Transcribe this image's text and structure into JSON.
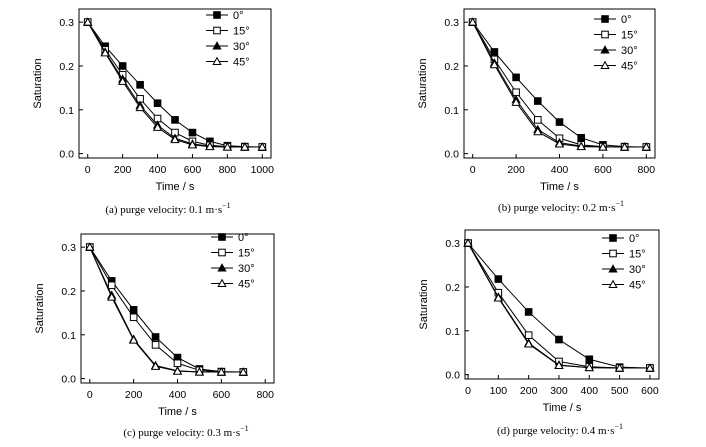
{
  "chart_data": [
    {
      "type": "line",
      "caption": "(a) purge velocity: 0.1 m·s",
      "caption_exp": "−1",
      "xlabel": "Time / s",
      "ylabel": "Saturation",
      "xlim": [
        -50,
        1050
      ],
      "ylim": [
        -0.01,
        0.33
      ],
      "xticks": [
        0,
        200,
        400,
        600,
        800,
        1000
      ],
      "yticks": [
        0.0,
        0.1,
        0.2,
        0.3
      ],
      "ytick_labels": [
        "0.0",
        "0.1",
        "0.2",
        "0.3"
      ],
      "legend": "top-right",
      "series": [
        {
          "name": "0°",
          "marker": "square-filled",
          "x": [
            0,
            100,
            200,
            300,
            400,
            500,
            600,
            700,
            800,
            900,
            1000
          ],
          "y": [
            0.3,
            0.245,
            0.2,
            0.157,
            0.115,
            0.077,
            0.048,
            0.028,
            0.018,
            0.016,
            0.015
          ]
        },
        {
          "name": "15°",
          "marker": "square-open",
          "x": [
            0,
            100,
            200,
            300,
            400,
            500,
            600,
            700,
            800,
            900,
            1000
          ],
          "y": [
            0.3,
            0.237,
            0.18,
            0.125,
            0.08,
            0.048,
            0.028,
            0.019,
            0.016,
            0.015,
            0.015
          ]
        },
        {
          "name": "30°",
          "marker": "triangle-filled",
          "x": [
            0,
            100,
            200,
            300,
            400,
            500,
            600,
            700,
            800,
            900,
            1000
          ],
          "y": [
            0.3,
            0.232,
            0.17,
            0.11,
            0.065,
            0.035,
            0.022,
            0.017,
            0.015,
            0.015,
            0.015
          ]
        },
        {
          "name": "45°",
          "marker": "triangle-open",
          "x": [
            0,
            100,
            200,
            300,
            400,
            500,
            600,
            700,
            800,
            900,
            1000
          ],
          "y": [
            0.3,
            0.23,
            0.165,
            0.105,
            0.06,
            0.032,
            0.02,
            0.016,
            0.015,
            0.015,
            0.015
          ]
        }
      ]
    },
    {
      "type": "line",
      "caption": "(b) purge velocity: 0.2 m·s",
      "caption_exp": "−1",
      "xlabel": "Time / s",
      "ylabel": "Saturation",
      "xlim": [
        -40,
        840
      ],
      "ylim": [
        -0.01,
        0.33
      ],
      "xticks": [
        0,
        200,
        400,
        600,
        800
      ],
      "yticks": [
        0.0,
        0.1,
        0.2,
        0.3
      ],
      "ytick_labels": [
        "0.0",
        "0.1",
        "0.2",
        "0.3"
      ],
      "legend": "top-right",
      "series": [
        {
          "name": "0°",
          "marker": "square-filled",
          "x": [
            0,
            100,
            200,
            300,
            400,
            500,
            600,
            700,
            800
          ],
          "y": [
            0.3,
            0.232,
            0.174,
            0.12,
            0.072,
            0.036,
            0.02,
            0.016,
            0.015
          ]
        },
        {
          "name": "15°",
          "marker": "square-open",
          "x": [
            0,
            100,
            200,
            300,
            400,
            500,
            600,
            700,
            800
          ],
          "y": [
            0.3,
            0.215,
            0.14,
            0.077,
            0.035,
            0.02,
            0.016,
            0.015,
            0.015
          ]
        },
        {
          "name": "30°",
          "marker": "triangle-filled",
          "x": [
            0,
            100,
            200,
            300,
            400,
            500,
            600,
            700,
            800
          ],
          "y": [
            0.3,
            0.207,
            0.123,
            0.055,
            0.025,
            0.017,
            0.015,
            0.015,
            0.015
          ]
        },
        {
          "name": "45°",
          "marker": "triangle-open",
          "x": [
            0,
            100,
            200,
            300,
            400,
            500,
            600,
            700,
            800
          ],
          "y": [
            0.3,
            0.203,
            0.117,
            0.05,
            0.022,
            0.016,
            0.015,
            0.015,
            0.015
          ]
        }
      ]
    },
    {
      "type": "line",
      "caption": "(c) purge velocity: 0.3 m·s",
      "caption_exp": "−1",
      "xlabel": "Time / s",
      "ylabel": "Saturation",
      "xlim": [
        -40,
        840
      ],
      "ylim": [
        -0.01,
        0.33
      ],
      "xticks": [
        0,
        200,
        400,
        600,
        800
      ],
      "yticks": [
        0.0,
        0.1,
        0.2,
        0.3
      ],
      "ytick_labels": [
        "0.0",
        "0.1",
        "0.2",
        "0.3"
      ],
      "legend": "top-right",
      "series": [
        {
          "name": "0°",
          "marker": "square-filled",
          "x": [
            0,
            100,
            200,
            300,
            400,
            500,
            600,
            700
          ],
          "y": [
            0.3,
            0.223,
            0.157,
            0.095,
            0.048,
            0.022,
            0.016,
            0.015
          ]
        },
        {
          "name": "15°",
          "marker": "square-open",
          "x": [
            0,
            100,
            200,
            300,
            400,
            500,
            600,
            700
          ],
          "y": [
            0.3,
            0.213,
            0.14,
            0.077,
            0.035,
            0.019,
            0.015,
            0.015
          ]
        },
        {
          "name": "30°",
          "marker": "triangle-filled",
          "x": [
            0,
            100,
            200,
            300,
            400,
            500,
            600,
            700
          ],
          "y": [
            0.3,
            0.19,
            0.09,
            0.03,
            0.018,
            0.015,
            0.015,
            0.015
          ]
        },
        {
          "name": "45°",
          "marker": "triangle-open",
          "x": [
            0,
            100,
            200,
            300,
            400,
            500,
            600,
            700
          ],
          "y": [
            0.3,
            0.186,
            0.088,
            0.028,
            0.017,
            0.015,
            0.015,
            0.015
          ]
        }
      ]
    },
    {
      "type": "line",
      "caption": "(d) purge velocity: 0.4 m·s",
      "caption_exp": "−1",
      "xlabel": "Time / s",
      "ylabel": "Saturation",
      "xlim": [
        -10,
        630
      ],
      "ylim": [
        -0.01,
        0.33
      ],
      "xticks": [
        0,
        100,
        200,
        300,
        400,
        500,
        600
      ],
      "yticks": [
        0.0,
        0.1,
        0.2,
        0.3
      ],
      "ytick_labels": [
        "0.0",
        "0.1",
        "0.2",
        "0.3"
      ],
      "legend": "top-right",
      "series": [
        {
          "name": "0°",
          "marker": "square-filled",
          "x": [
            0,
            100,
            200,
            300,
            400,
            500,
            600
          ],
          "y": [
            0.3,
            0.218,
            0.143,
            0.08,
            0.035,
            0.017,
            0.015
          ]
        },
        {
          "name": "15°",
          "marker": "square-open",
          "x": [
            0,
            100,
            200,
            300,
            400,
            500,
            600
          ],
          "y": [
            0.3,
            0.187,
            0.09,
            0.03,
            0.018,
            0.015,
            0.015
          ]
        },
        {
          "name": "30°",
          "marker": "triangle-filled",
          "x": [
            0,
            100,
            200,
            300,
            400,
            500,
            600
          ],
          "y": [
            0.3,
            0.177,
            0.072,
            0.022,
            0.016,
            0.015,
            0.015
          ]
        },
        {
          "name": "45°",
          "marker": "triangle-open",
          "x": [
            0,
            100,
            200,
            300,
            400,
            500,
            600
          ],
          "y": [
            0.3,
            0.175,
            0.07,
            0.021,
            0.016,
            0.015,
            0.015
          ]
        }
      ]
    }
  ]
}
